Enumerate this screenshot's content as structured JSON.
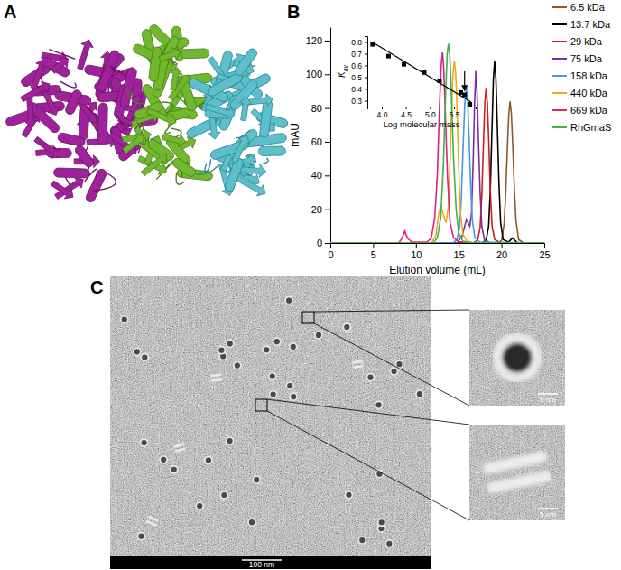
{
  "panel_labels": [
    "A",
    "B",
    "C"
  ],
  "chart_data": [
    {
      "type": "line",
      "xlabel": "Elution volume (mL)",
      "ylabel": "mAU",
      "xlim": [
        0,
        25
      ],
      "ylim": [
        0,
        128
      ],
      "xticks": [
        0,
        5,
        10,
        15,
        20,
        25
      ],
      "yticks": [
        0,
        20,
        40,
        60,
        80,
        100,
        120
      ],
      "grid": false,
      "legend": "right",
      "series": [
        {
          "name": "6.5 kDa",
          "color": "#8b5a2b",
          "x": [
            0,
            19.5,
            20.0,
            20.3,
            20.5,
            20.7,
            20.85,
            21.0,
            21.15,
            21.3,
            21.5,
            21.7,
            22.0,
            22.5,
            25
          ],
          "values": [
            0,
            0,
            1.4,
            11,
            30,
            58,
            76,
            84,
            77,
            60,
            33,
            13,
            2,
            0.3,
            0
          ]
        },
        {
          "name": "13.7 kDa",
          "color": "#000000",
          "x": [
            0,
            17.7,
            18.2,
            18.5,
            18.7,
            18.9,
            19.05,
            19.2,
            19.35,
            19.5,
            19.7,
            19.9,
            20.2,
            20.8,
            21.3,
            21.8,
            25
          ],
          "values": [
            0,
            0,
            1.5,
            10,
            32,
            70,
            97,
            108,
            97,
            72,
            36,
            12,
            2,
            0.5,
            3,
            0.3,
            0
          ]
        },
        {
          "name": "29 kDa",
          "color": "#d7191c",
          "x": [
            0,
            16.7,
            17.2,
            17.5,
            17.7,
            17.9,
            18.05,
            18.2,
            18.35,
            18.5,
            18.7,
            18.9,
            19.2,
            19.8,
            25
          ],
          "values": [
            0,
            0,
            1.5,
            9,
            28,
            60,
            83,
            92,
            83,
            62,
            30,
            10,
            2,
            0.3,
            0
          ]
        },
        {
          "name": "75 kDa",
          "color": "#7b2fa0",
          "x": [
            0,
            14.8,
            15.4,
            15.9,
            16.3,
            16.5,
            16.7,
            16.85,
            17.0,
            17.15,
            17.3,
            17.5,
            17.7,
            18.0,
            18.6,
            25
          ],
          "values": [
            0,
            0,
            4,
            14,
            10,
            18,
            50,
            82,
            102,
            88,
            62,
            30,
            10,
            2,
            0.3,
            0
          ]
        },
        {
          "name": "158 kDa",
          "color": "#3d9be9",
          "x": [
            0,
            14.3,
            14.8,
            15.1,
            15.3,
            15.5,
            15.7,
            15.9,
            16.05,
            16.2,
            16.4,
            16.6,
            16.9,
            17.5,
            25
          ],
          "values": [
            0,
            0,
            2,
            9,
            25,
            55,
            82,
            92,
            84,
            64,
            34,
            13,
            3,
            0.5,
            0
          ]
        },
        {
          "name": "440 kDa",
          "color": "#f5a623",
          "x": [
            0,
            11.8,
            12.3,
            12.7,
            12.9,
            13.2,
            13.5,
            13.8,
            14.0,
            14.2,
            14.35,
            14.5,
            14.65,
            14.8,
            15.0,
            15.2,
            15.5,
            16.0,
            16.6,
            25
          ],
          "values": [
            0,
            0,
            4,
            18,
            22,
            17,
            12,
            22,
            50,
            84,
            102,
            108,
            100,
            80,
            45,
            18,
            5,
            1,
            0.3,
            0
          ]
        },
        {
          "name": "669 kDa",
          "color": "#e0217a",
          "x": [
            0,
            8.0,
            8.4,
            8.7,
            9.0,
            9.5,
            11.3,
            11.8,
            12.2,
            12.5,
            12.75,
            12.95,
            13.1,
            13.25,
            13.45,
            13.7,
            14.0,
            14.4,
            15.0,
            16.0,
            25
          ],
          "values": [
            0,
            0,
            3,
            7,
            3,
            0.5,
            0.5,
            3,
            15,
            40,
            80,
            105,
            113,
            104,
            75,
            38,
            12,
            3,
            0.8,
            0.3,
            0
          ]
        },
        {
          "name": "RhGmaS",
          "color": "#3cb44b",
          "x": [
            0,
            12.0,
            12.5,
            12.9,
            13.2,
            13.45,
            13.65,
            13.8,
            13.95,
            14.15,
            14.4,
            14.7,
            15.0,
            15.5,
            16.5,
            25
          ],
          "values": [
            0,
            0,
            3,
            15,
            45,
            85,
            112,
            118,
            112,
            88,
            50,
            20,
            6,
            1,
            0.3,
            0
          ]
        }
      ]
    },
    {
      "type": "scatter",
      "xlabel": "Log molecular mass",
      "ylabel": "Kav",
      "xlim": [
        3.7,
        5.95
      ],
      "ylim": [
        0.25,
        0.85
      ],
      "xticks": [
        {
          "value": 4,
          "label": "4.0"
        },
        4.5,
        {
          "value": 5,
          "label": "5.0"
        },
        5.5
      ],
      "yticks": [
        0.3,
        0.4,
        0.5,
        0.6,
        0.7,
        0.8
      ],
      "series": [
        {
          "type": "scatter",
          "marker": "square",
          "color": "#000000",
          "x": [
            3.81,
            4.14,
            4.46,
            4.88,
            5.2,
            5.64,
            5.83
          ],
          "values": [
            0.78,
            0.68,
            0.61,
            0.54,
            0.47,
            0.37,
            0.27
          ]
        },
        {
          "type": "line",
          "color": "#000000",
          "x": [
            3.8,
            5.85
          ],
          "values": [
            0.8,
            0.29
          ]
        },
        {
          "type": "scatter",
          "marker": "arrow",
          "color": "#000000",
          "x": [
            5.72
          ],
          "values": [
            0.35
          ]
        }
      ]
    }
  ],
  "micrograph": {
    "scale_bar": "100 nm",
    "zoom_scale_bars": [
      "5 nm",
      "5 nm"
    ]
  }
}
